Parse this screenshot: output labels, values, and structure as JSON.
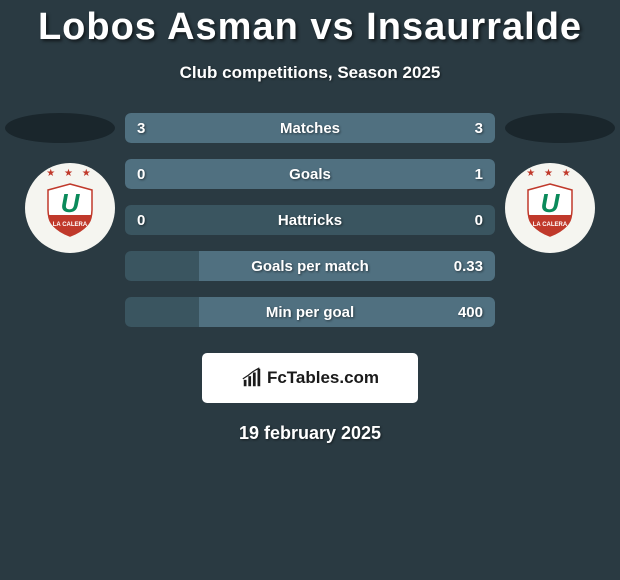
{
  "header": {
    "title": "Lobos Asman vs Insaurralde",
    "subtitle": "Club competitions, Season 2025"
  },
  "colors": {
    "background": "#2a3a42",
    "bar_base": "#3a5560",
    "bar_fill": "#507080",
    "text": "#ffffff",
    "shadow": "#1a262c",
    "logo_bg": "#f5f5f0",
    "brand_bg": "#ffffff",
    "brand_text": "#1a1a1a",
    "star_color": "#c0392b",
    "shield_red": "#c0392b",
    "shield_white": "#ffffff",
    "shield_green": "#0a8a5a",
    "shield_blue": "#1b5aa8"
  },
  "stats": [
    {
      "label": "Matches",
      "left_val": "3",
      "right_val": "3",
      "left_pct": 50,
      "right_pct": 50
    },
    {
      "label": "Goals",
      "left_val": "0",
      "right_val": "1",
      "left_pct": 15,
      "right_pct": 85
    },
    {
      "label": "Hattricks",
      "left_val": "0",
      "right_val": "0",
      "left_pct": 0,
      "right_pct": 0
    },
    {
      "label": "Goals per match",
      "left_val": "",
      "right_val": "0.33",
      "left_pct": 0,
      "right_pct": 80
    },
    {
      "label": "Min per goal",
      "left_val": "",
      "right_val": "400",
      "left_pct": 0,
      "right_pct": 80
    }
  ],
  "branding": {
    "text": "FcTables.com"
  },
  "date": "19 february 2025",
  "team_logo": {
    "stars": "★ ★ ★",
    "letter": "U",
    "banner_text": "LA CALERA"
  }
}
